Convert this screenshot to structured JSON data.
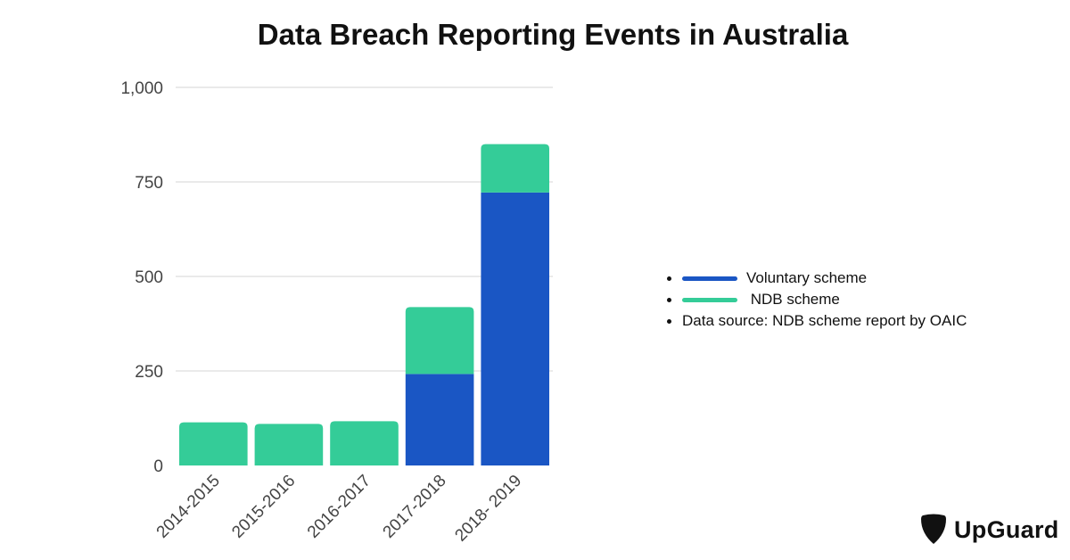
{
  "chart_data": {
    "type": "bar",
    "stacked": true,
    "title": "Data Breach Reporting Events in Australia",
    "categories": [
      "2014-2015",
      "2015-2016",
      "2016-2017",
      "2017-2018",
      "2018- 2019"
    ],
    "series": [
      {
        "name": "Voluntary scheme",
        "color": "#1a56c4",
        "values": [
          0,
          0,
          0,
          242,
          722
        ]
      },
      {
        "name": "NDB scheme",
        "color": "#34cc98",
        "values": [
          114,
          110,
          117,
          177,
          128
        ]
      }
    ],
    "ylim": [
      0,
      1000
    ],
    "yticks": [
      "0",
      "250",
      "500",
      "750",
      "1,000"
    ],
    "ytick_values": [
      0,
      250,
      500,
      750,
      1000
    ],
    "grid": true,
    "legend_position": "right"
  },
  "legend": {
    "items": [
      {
        "label": "Voluntary scheme",
        "color": "#1a56c4"
      },
      {
        "label": " NDB scheme",
        "color": "#34cc98"
      }
    ],
    "note": "Data source: NDB scheme report by OAIC"
  },
  "logo": {
    "text": "UpGuard",
    "icon": "upguard-shield-icon"
  }
}
